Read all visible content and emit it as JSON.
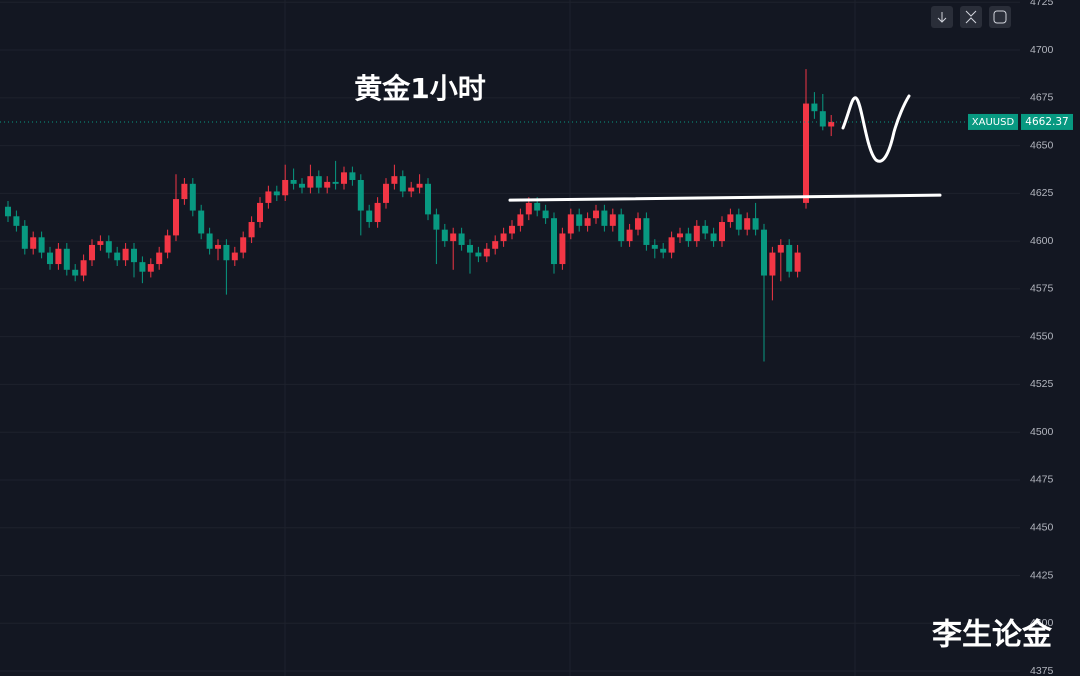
{
  "chart_data": {
    "type": "candlestick",
    "title": "黄金1小时",
    "watermark": "李生论金",
    "symbol": "XAUUSD",
    "last_price": 4662.37,
    "level": 4623,
    "up_color": "#f23645",
    "down_color": "#089981",
    "ylim": [
      4372.4,
      4726.2
    ],
    "yticks": [
      4375,
      4400,
      4425,
      4450,
      4475,
      4500,
      4525,
      4550,
      4575,
      4600,
      4625,
      4650,
      4675,
      4700,
      4725
    ],
    "grid": true,
    "candles": [
      [
        4618,
        4621,
        4610,
        4613
      ],
      [
        4613,
        4616,
        4605,
        4608
      ],
      [
        4608,
        4611,
        4593,
        4596
      ],
      [
        4596,
        4605,
        4593,
        4602
      ],
      [
        4602,
        4605,
        4591,
        4594
      ],
      [
        4594,
        4597,
        4585,
        4588
      ],
      [
        4588,
        4599,
        4585,
        4596
      ],
      [
        4596,
        4599,
        4582,
        4585
      ],
      [
        4585,
        4588,
        4579,
        4582
      ],
      [
        4582,
        4593,
        4579,
        4590
      ],
      [
        4590,
        4601,
        4587,
        4598
      ],
      [
        4598,
        4603,
        4595,
        4600
      ],
      [
        4600,
        4603,
        4591,
        4594
      ],
      [
        4594,
        4597,
        4587,
        4590
      ],
      [
        4590,
        4599,
        4587,
        4596
      ],
      [
        4596,
        4599,
        4581,
        4589
      ],
      [
        4589,
        4592,
        4578,
        4584
      ],
      [
        4584,
        4591,
        4581,
        4588
      ],
      [
        4588,
        4597,
        4585,
        4594
      ],
      [
        4594,
        4606,
        4591,
        4603
      ],
      [
        4603,
        4635,
        4600,
        4622
      ],
      [
        4622,
        4633,
        4619,
        4630
      ],
      [
        4630,
        4633,
        4613,
        4616
      ],
      [
        4616,
        4619,
        4601,
        4604
      ],
      [
        4604,
        4607,
        4593,
        4596
      ],
      [
        4596,
        4601,
        4590,
        4598
      ],
      [
        4598,
        4601,
        4572,
        4590
      ],
      [
        4590,
        4597,
        4587,
        4594
      ],
      [
        4594,
        4605,
        4591,
        4602
      ],
      [
        4602,
        4613,
        4599,
        4610
      ],
      [
        4610,
        4623,
        4607,
        4620
      ],
      [
        4620,
        4629,
        4617,
        4626
      ],
      [
        4626,
        4629,
        4621,
        4624
      ],
      [
        4624,
        4640,
        4621,
        4632
      ],
      [
        4632,
        4638,
        4627,
        4630
      ],
      [
        4630,
        4633,
        4625,
        4628
      ],
      [
        4628,
        4640,
        4625,
        4634
      ],
      [
        4634,
        4637,
        4625,
        4628
      ],
      [
        4628,
        4634,
        4625,
        4631
      ],
      [
        4631,
        4642,
        4627,
        4630
      ],
      [
        4630,
        4639,
        4627,
        4636
      ],
      [
        4636,
        4639,
        4629,
        4632
      ],
      [
        4632,
        4635,
        4603,
        4616
      ],
      [
        4616,
        4619,
        4607,
        4610
      ],
      [
        4610,
        4623,
        4607,
        4620
      ],
      [
        4620,
        4633,
        4617,
        4630
      ],
      [
        4630,
        4640,
        4627,
        4634
      ],
      [
        4634,
        4637,
        4623,
        4626
      ],
      [
        4626,
        4631,
        4623,
        4628
      ],
      [
        4628,
        4635,
        4625,
        4630
      ],
      [
        4630,
        4633,
        4611,
        4614
      ],
      [
        4614,
        4617,
        4588,
        4606
      ],
      [
        4606,
        4609,
        4597,
        4600
      ],
      [
        4600,
        4607,
        4585,
        4604
      ],
      [
        4604,
        4607,
        4595,
        4598
      ],
      [
        4598,
        4601,
        4583,
        4594
      ],
      [
        4594,
        4597,
        4589,
        4592
      ],
      [
        4592,
        4599,
        4589,
        4596
      ],
      [
        4596,
        4603,
        4593,
        4600
      ],
      [
        4600,
        4607,
        4597,
        4604
      ],
      [
        4604,
        4611,
        4601,
        4608
      ],
      [
        4608,
        4617,
        4605,
        4614
      ],
      [
        4614,
        4623,
        4611,
        4620
      ],
      [
        4620,
        4623,
        4613,
        4616
      ],
      [
        4616,
        4619,
        4609,
        4612
      ],
      [
        4612,
        4615,
        4583,
        4588
      ],
      [
        4588,
        4607,
        4585,
        4604
      ],
      [
        4604,
        4617,
        4601,
        4614
      ],
      [
        4614,
        4617,
        4605,
        4608
      ],
      [
        4608,
        4615,
        4605,
        4612
      ],
      [
        4612,
        4619,
        4609,
        4616
      ],
      [
        4616,
        4619,
        4605,
        4608
      ],
      [
        4608,
        4617,
        4605,
        4614
      ],
      [
        4614,
        4617,
        4597,
        4600
      ],
      [
        4600,
        4609,
        4597,
        4606
      ],
      [
        4606,
        4615,
        4603,
        4612
      ],
      [
        4612,
        4615,
        4595,
        4598
      ],
      [
        4598,
        4601,
        4591,
        4596
      ],
      [
        4596,
        4599,
        4591,
        4594
      ],
      [
        4594,
        4605,
        4591,
        4602
      ],
      [
        4602,
        4607,
        4599,
        4604
      ],
      [
        4604,
        4607,
        4597,
        4600
      ],
      [
        4600,
        4611,
        4597,
        4608
      ],
      [
        4608,
        4611,
        4601,
        4604
      ],
      [
        4604,
        4607,
        4597,
        4600
      ],
      [
        4600,
        4613,
        4597,
        4610
      ],
      [
        4610,
        4617,
        4607,
        4614
      ],
      [
        4614,
        4617,
        4603,
        4606
      ],
      [
        4606,
        4615,
        4603,
        4612
      ],
      [
        4612,
        4620,
        4603,
        4606
      ],
      [
        4606,
        4609,
        4537,
        4582
      ],
      [
        4582,
        4597,
        4569,
        4594
      ],
      [
        4594,
        4601,
        4579,
        4598
      ],
      [
        4598,
        4601,
        4581,
        4584
      ],
      [
        4584,
        4598,
        4581,
        4594
      ],
      [
        4620,
        4690,
        4617,
        4672
      ],
      [
        4672,
        4678,
        4664,
        4668
      ],
      [
        4668,
        4677,
        4658,
        4660
      ],
      [
        4660,
        4666,
        4655,
        4662.37
      ]
    ]
  }
}
